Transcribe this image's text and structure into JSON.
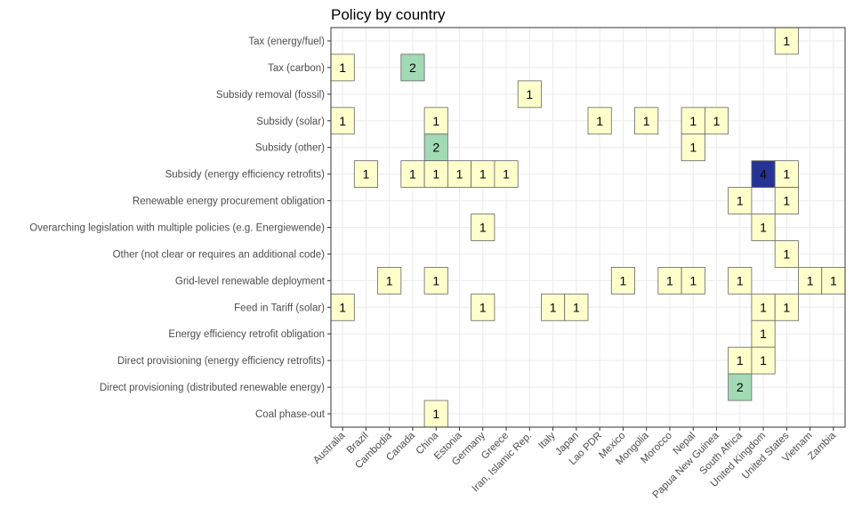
{
  "chart_data": {
    "type": "heatmap",
    "title": "Policy by country",
    "xlabel": "",
    "ylabel": "",
    "grid": true,
    "legend": "none",
    "x_categories": [
      "Australia",
      "Brazil",
      "Cambodia",
      "Canada",
      "China",
      "Estonia",
      "Germany",
      "Greece",
      "Iran, Islamic Rep.",
      "Italy",
      "Japan",
      "Lao PDR",
      "Mexico",
      "Mongolia",
      "Morocco",
      "Nepal",
      "Papua New Guinea",
      "South Africa",
      "United Kingdom",
      "United States",
      "Vietnam",
      "Zambia"
    ],
    "y_categories": [
      "Tax (energy/fuel)",
      "Tax (carbon)",
      "Subsidy removal (fossil)",
      "Subsidy (solar)",
      "Subsidy (other)",
      "Subsidy (energy efficiency retrofits)",
      "Renewable energy procurement obligation",
      "Overarching legislation with multiple policies (e.g. Energiewende)",
      "Other (not clear or requires an additional code)",
      "Grid-level renewable deployment",
      "Feed in Tariff (solar)",
      "Energy efficiency retrofit obligation",
      "Direct provisioning (energy efficiency retrofits)",
      "Direct provisioning (distributed renewable energy)",
      "Coal phase-out"
    ],
    "color_scale": {
      "1": "#ffffcc",
      "2": "#a1dab4",
      "4": "#253494"
    },
    "cells": [
      {
        "x": "United States",
        "y": "Tax (energy/fuel)",
        "value": 1
      },
      {
        "x": "Australia",
        "y": "Tax (carbon)",
        "value": 1
      },
      {
        "x": "Canada",
        "y": "Tax (carbon)",
        "value": 2
      },
      {
        "x": "Iran, Islamic Rep.",
        "y": "Subsidy removal (fossil)",
        "value": 1
      },
      {
        "x": "Australia",
        "y": "Subsidy (solar)",
        "value": 1
      },
      {
        "x": "China",
        "y": "Subsidy (solar)",
        "value": 1
      },
      {
        "x": "Lao PDR",
        "y": "Subsidy (solar)",
        "value": 1
      },
      {
        "x": "Mongolia",
        "y": "Subsidy (solar)",
        "value": 1
      },
      {
        "x": "Nepal",
        "y": "Subsidy (solar)",
        "value": 1
      },
      {
        "x": "Papua New Guinea",
        "y": "Subsidy (solar)",
        "value": 1
      },
      {
        "x": "China",
        "y": "Subsidy (other)",
        "value": 2
      },
      {
        "x": "Nepal",
        "y": "Subsidy (other)",
        "value": 1
      },
      {
        "x": "Brazil",
        "y": "Subsidy (energy efficiency retrofits)",
        "value": 1
      },
      {
        "x": "Canada",
        "y": "Subsidy (energy efficiency retrofits)",
        "value": 1
      },
      {
        "x": "China",
        "y": "Subsidy (energy efficiency retrofits)",
        "value": 1
      },
      {
        "x": "Estonia",
        "y": "Subsidy (energy efficiency retrofits)",
        "value": 1
      },
      {
        "x": "Germany",
        "y": "Subsidy (energy efficiency retrofits)",
        "value": 1
      },
      {
        "x": "Greece",
        "y": "Subsidy (energy efficiency retrofits)",
        "value": 1
      },
      {
        "x": "United Kingdom",
        "y": "Subsidy (energy efficiency retrofits)",
        "value": 4
      },
      {
        "x": "United States",
        "y": "Subsidy (energy efficiency retrofits)",
        "value": 1
      },
      {
        "x": "South Africa",
        "y": "Renewable energy procurement obligation",
        "value": 1
      },
      {
        "x": "United States",
        "y": "Renewable energy procurement obligation",
        "value": 1
      },
      {
        "x": "Germany",
        "y": "Overarching legislation with multiple policies (e.g. Energiewende)",
        "value": 1
      },
      {
        "x": "United Kingdom",
        "y": "Overarching legislation with multiple policies (e.g. Energiewende)",
        "value": 1
      },
      {
        "x": "United States",
        "y": "Other (not clear or requires an additional code)",
        "value": 1
      },
      {
        "x": "Cambodia",
        "y": "Grid-level renewable deployment",
        "value": 1
      },
      {
        "x": "China",
        "y": "Grid-level renewable deployment",
        "value": 1
      },
      {
        "x": "Mexico",
        "y": "Grid-level renewable deployment",
        "value": 1
      },
      {
        "x": "Morocco",
        "y": "Grid-level renewable deployment",
        "value": 1
      },
      {
        "x": "Nepal",
        "y": "Grid-level renewable deployment",
        "value": 1
      },
      {
        "x": "South Africa",
        "y": "Grid-level renewable deployment",
        "value": 1
      },
      {
        "x": "Vietnam",
        "y": "Grid-level renewable deployment",
        "value": 1
      },
      {
        "x": "Zambia",
        "y": "Grid-level renewable deployment",
        "value": 1
      },
      {
        "x": "Australia",
        "y": "Feed in Tariff (solar)",
        "value": 1
      },
      {
        "x": "Germany",
        "y": "Feed in Tariff (solar)",
        "value": 1
      },
      {
        "x": "Italy",
        "y": "Feed in Tariff (solar)",
        "value": 1
      },
      {
        "x": "Japan",
        "y": "Feed in Tariff (solar)",
        "value": 1
      },
      {
        "x": "United Kingdom",
        "y": "Feed in Tariff (solar)",
        "value": 1
      },
      {
        "x": "United States",
        "y": "Feed in Tariff (solar)",
        "value": 1
      },
      {
        "x": "United Kingdom",
        "y": "Energy efficiency retrofit obligation",
        "value": 1
      },
      {
        "x": "South Africa",
        "y": "Direct provisioning (energy efficiency retrofits)",
        "value": 1
      },
      {
        "x": "United Kingdom",
        "y": "Direct provisioning (energy efficiency retrofits)",
        "value": 1
      },
      {
        "x": "South Africa",
        "y": "Direct provisioning (distributed renewable energy)",
        "value": 2
      },
      {
        "x": "China",
        "y": "Coal phase-out",
        "value": 1
      }
    ]
  }
}
